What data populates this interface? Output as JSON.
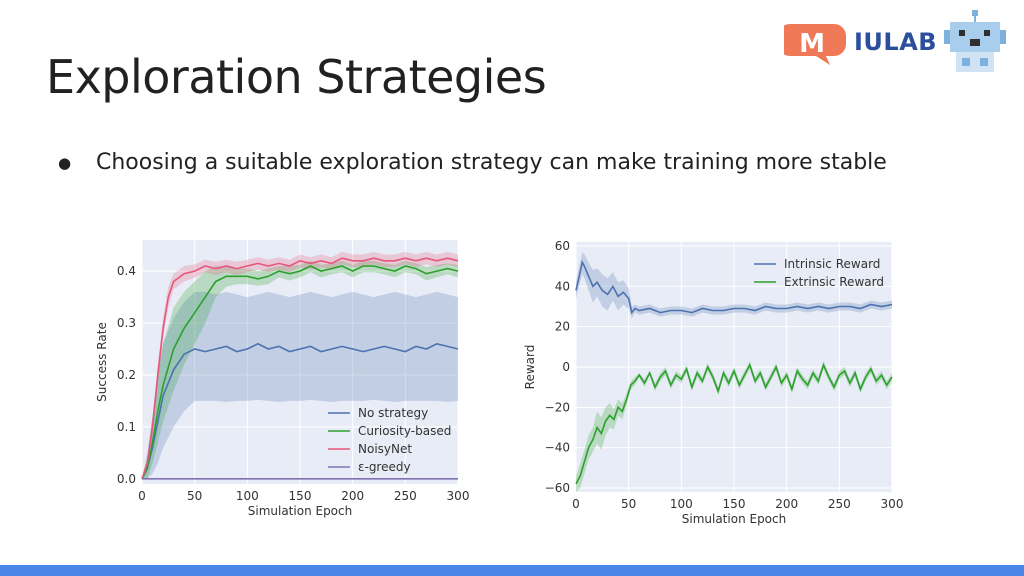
{
  "slide": {
    "title": "Exploration Strategies",
    "bullet": "Choosing a suitable exploration strategy can make training more stable"
  },
  "logo": {
    "letter": "M",
    "text": "IULAB"
  },
  "colors": {
    "bottom_bar": "#4a86e8",
    "plot_bg": "#e8ecf6",
    "grid": "#ffffff"
  },
  "chart_data": [
    {
      "type": "line",
      "xlabel": "Simulation Epoch",
      "ylabel": "Success Rate",
      "xlim": [
        0,
        300
      ],
      "ylim": [
        -0.01,
        0.46
      ],
      "xticks": [
        0,
        50,
        100,
        150,
        200,
        250,
        300
      ],
      "yticks": [
        0.0,
        0.1,
        0.2,
        0.3,
        0.4
      ],
      "ytick_labels": [
        "0.0",
        "0.1",
        "0.2",
        "0.3",
        "0.4"
      ],
      "grid": true,
      "legend_position": "lower-right",
      "series": [
        {
          "name": "No strategy",
          "color": "#4c72b0",
          "x": [
            0,
            5,
            10,
            15,
            20,
            30,
            40,
            50,
            60,
            70,
            80,
            90,
            100,
            110,
            120,
            130,
            140,
            150,
            160,
            170,
            180,
            190,
            200,
            210,
            220,
            230,
            240,
            250,
            260,
            270,
            280,
            290,
            300
          ],
          "y": [
            0.0,
            0.02,
            0.06,
            0.11,
            0.16,
            0.21,
            0.24,
            0.25,
            0.245,
            0.25,
            0.255,
            0.245,
            0.25,
            0.26,
            0.25,
            0.255,
            0.245,
            0.25,
            0.255,
            0.245,
            0.25,
            0.255,
            0.25,
            0.245,
            0.25,
            0.255,
            0.25,
            0.245,
            0.255,
            0.25,
            0.26,
            0.255,
            0.25
          ],
          "band_upper": [
            0.0,
            0.05,
            0.12,
            0.2,
            0.26,
            0.31,
            0.34,
            0.36,
            0.36,
            0.355,
            0.36,
            0.355,
            0.35,
            0.355,
            0.36,
            0.355,
            0.35,
            0.355,
            0.36,
            0.355,
            0.35,
            0.355,
            0.36,
            0.355,
            0.35,
            0.355,
            0.36,
            0.355,
            0.35,
            0.355,
            0.36,
            0.355,
            0.35
          ],
          "band_lower": [
            0.0,
            0.0,
            0.01,
            0.03,
            0.06,
            0.1,
            0.13,
            0.15,
            0.15,
            0.15,
            0.148,
            0.15,
            0.15,
            0.152,
            0.15,
            0.148,
            0.15,
            0.15,
            0.152,
            0.15,
            0.148,
            0.15,
            0.15,
            0.15,
            0.152,
            0.15,
            0.148,
            0.15,
            0.15,
            0.15,
            0.15,
            0.148,
            0.15
          ]
        },
        {
          "name": "Curiosity-based",
          "color": "#2ca02c",
          "x": [
            0,
            5,
            10,
            15,
            20,
            30,
            40,
            50,
            60,
            70,
            80,
            90,
            100,
            110,
            120,
            130,
            140,
            150,
            160,
            170,
            180,
            190,
            200,
            210,
            220,
            230,
            240,
            250,
            260,
            270,
            280,
            290,
            300
          ],
          "y": [
            0.0,
            0.02,
            0.07,
            0.13,
            0.18,
            0.25,
            0.29,
            0.32,
            0.35,
            0.38,
            0.39,
            0.39,
            0.39,
            0.385,
            0.39,
            0.4,
            0.395,
            0.4,
            0.41,
            0.4,
            0.405,
            0.41,
            0.4,
            0.41,
            0.41,
            0.405,
            0.4,
            0.41,
            0.405,
            0.395,
            0.4,
            0.405,
            0.4
          ],
          "band_upper": [
            0.0,
            0.04,
            0.12,
            0.2,
            0.26,
            0.33,
            0.36,
            0.38,
            0.4,
            0.41,
            0.41,
            0.405,
            0.405,
            0.4,
            0.405,
            0.41,
            0.41,
            0.412,
            0.42,
            0.412,
            0.415,
            0.42,
            0.412,
            0.42,
            0.42,
            0.415,
            0.412,
            0.42,
            0.415,
            0.408,
            0.412,
            0.415,
            0.412
          ],
          "band_lower": [
            0.0,
            0.0,
            0.03,
            0.07,
            0.11,
            0.17,
            0.22,
            0.26,
            0.3,
            0.35,
            0.37,
            0.375,
            0.375,
            0.372,
            0.375,
            0.388,
            0.382,
            0.388,
            0.398,
            0.388,
            0.394,
            0.398,
            0.388,
            0.398,
            0.398,
            0.394,
            0.388,
            0.398,
            0.394,
            0.382,
            0.388,
            0.394,
            0.388
          ]
        },
        {
          "name": "NoisyNet",
          "color": "#e8567c",
          "x": [
            0,
            5,
            10,
            15,
            20,
            25,
            30,
            40,
            50,
            60,
            70,
            80,
            90,
            100,
            110,
            120,
            130,
            140,
            150,
            160,
            170,
            180,
            190,
            200,
            210,
            220,
            230,
            240,
            250,
            260,
            270,
            280,
            290,
            300
          ],
          "y": [
            0.0,
            0.03,
            0.1,
            0.2,
            0.29,
            0.35,
            0.38,
            0.395,
            0.4,
            0.41,
            0.405,
            0.41,
            0.405,
            0.41,
            0.415,
            0.41,
            0.415,
            0.41,
            0.42,
            0.415,
            0.42,
            0.415,
            0.425,
            0.42,
            0.42,
            0.425,
            0.42,
            0.42,
            0.425,
            0.42,
            0.425,
            0.42,
            0.425,
            0.42
          ],
          "band_upper": [
            0.0,
            0.04,
            0.12,
            0.22,
            0.31,
            0.37,
            0.395,
            0.41,
            0.413,
            0.422,
            0.418,
            0.422,
            0.418,
            0.422,
            0.427,
            0.422,
            0.427,
            0.422,
            0.432,
            0.427,
            0.432,
            0.427,
            0.437,
            0.432,
            0.432,
            0.437,
            0.432,
            0.432,
            0.437,
            0.432,
            0.437,
            0.432,
            0.437,
            0.432
          ],
          "band_lower": [
            0.0,
            0.02,
            0.08,
            0.18,
            0.27,
            0.33,
            0.365,
            0.38,
            0.387,
            0.398,
            0.392,
            0.398,
            0.392,
            0.398,
            0.403,
            0.398,
            0.403,
            0.398,
            0.408,
            0.403,
            0.408,
            0.403,
            0.413,
            0.408,
            0.408,
            0.413,
            0.408,
            0.408,
            0.413,
            0.408,
            0.413,
            0.408,
            0.413,
            0.408
          ]
        },
        {
          "name": "ε-greedy",
          "color": "#8172b2",
          "x": [
            0,
            300
          ],
          "y": [
            0.0,
            0.0
          ]
        }
      ]
    },
    {
      "type": "line",
      "xlabel": "Simulation Epoch",
      "ylabel": "Reward",
      "xlim": [
        0,
        300
      ],
      "ylim": [
        -62,
        62
      ],
      "xticks": [
        0,
        50,
        100,
        150,
        200,
        250,
        300
      ],
      "yticks": [
        -60,
        -40,
        -20,
        0,
        20,
        40,
        60
      ],
      "ytick_labels": [
        "−60",
        "−40",
        "−20",
        "0",
        "20",
        "40",
        "60"
      ],
      "grid": true,
      "legend_position": "upper-right",
      "series": [
        {
          "name": "Intrinsic Reward",
          "color": "#4c72b0",
          "x": [
            0,
            3,
            6,
            8,
            12,
            16,
            20,
            25,
            30,
            35,
            40,
            45,
            50,
            53,
            56,
            60,
            70,
            80,
            90,
            100,
            110,
            120,
            130,
            140,
            150,
            160,
            170,
            180,
            190,
            200,
            210,
            220,
            230,
            240,
            250,
            260,
            270,
            280,
            290,
            300
          ],
          "y": [
            38,
            45,
            52,
            50,
            45,
            40,
            42,
            38,
            36,
            40,
            35,
            37,
            34,
            27,
            29,
            28,
            29,
            27,
            28,
            28,
            27,
            29,
            28,
            28,
            29,
            29,
            28,
            30,
            29,
            29,
            30,
            29,
            30,
            29,
            30,
            30,
            29,
            31,
            30,
            31
          ],
          "band_upper": [
            42,
            50,
            57,
            56,
            52,
            48,
            49,
            46,
            44,
            47,
            42,
            43,
            39,
            30,
            31,
            30,
            31,
            29,
            30,
            30,
            29,
            31,
            30,
            30,
            31,
            31,
            30,
            32,
            31,
            31,
            32,
            31,
            32,
            31,
            32,
            32,
            31,
            33,
            32,
            33
          ],
          "band_lower": [
            34,
            40,
            46,
            44,
            38,
            32,
            35,
            30,
            28,
            33,
            28,
            31,
            29,
            24,
            27,
            26,
            27,
            25,
            26,
            26,
            25,
            27,
            26,
            26,
            27,
            27,
            26,
            28,
            27,
            27,
            28,
            27,
            28,
            27,
            28,
            28,
            27,
            29,
            28,
            29
          ]
        },
        {
          "name": "Extrinsic Reward",
          "color": "#2ca02c",
          "x": [
            0,
            4,
            8,
            12,
            16,
            20,
            24,
            28,
            32,
            36,
            40,
            44,
            48,
            52,
            56,
            60,
            65,
            70,
            75,
            80,
            85,
            90,
            95,
            100,
            105,
            110,
            115,
            120,
            125,
            130,
            135,
            140,
            145,
            150,
            155,
            160,
            165,
            170,
            175,
            180,
            185,
            190,
            195,
            200,
            205,
            210,
            215,
            220,
            225,
            230,
            235,
            240,
            245,
            250,
            255,
            260,
            265,
            270,
            275,
            280,
            285,
            290,
            295,
            300
          ],
          "y": [
            -58,
            -54,
            -47,
            -40,
            -36,
            -30,
            -33,
            -27,
            -24,
            -26,
            -20,
            -22,
            -16,
            -9,
            -7,
            -4,
            -8,
            -3,
            -10,
            -5,
            -2,
            -9,
            -4,
            -6,
            -1,
            -10,
            -3,
            -7,
            0,
            -5,
            -12,
            -3,
            -8,
            -2,
            -9,
            -4,
            1,
            -7,
            -3,
            -10,
            -5,
            0,
            -8,
            -4,
            -11,
            -2,
            -6,
            -9,
            -3,
            -7,
            1,
            -5,
            -10,
            -4,
            -2,
            -8,
            -3,
            -11,
            -5,
            -1,
            -7,
            -4,
            -9,
            -5
          ],
          "band_upper": [
            -54,
            -48,
            -41,
            -34,
            -30,
            -22,
            -25,
            -20,
            -18,
            -21,
            -16,
            -18,
            -13,
            -7,
            -5,
            -3,
            -6,
            -2,
            -8,
            -3,
            0,
            -7,
            -2,
            -4,
            1,
            -8,
            -1,
            -5,
            2,
            -3,
            -10,
            -1,
            -6,
            0,
            -7,
            -2,
            3,
            -5,
            -1,
            -8,
            -3,
            2,
            -6,
            -2,
            -9,
            0,
            -4,
            -7,
            -1,
            -5,
            3,
            -3,
            -8,
            -2,
            0,
            -6,
            -1,
            -9,
            -3,
            1,
            -5,
            -2,
            -7,
            -3
          ],
          "band_lower": [
            -62,
            -60,
            -53,
            -46,
            -42,
            -38,
            -41,
            -34,
            -30,
            -31,
            -24,
            -26,
            -19,
            -11,
            -9,
            -5,
            -10,
            -4,
            -12,
            -7,
            -4,
            -11,
            -6,
            -8,
            -3,
            -12,
            -5,
            -9,
            -2,
            -7,
            -14,
            -5,
            -10,
            -4,
            -11,
            -6,
            -1,
            -9,
            -5,
            -12,
            -7,
            -2,
            -10,
            -6,
            -13,
            -4,
            -8,
            -11,
            -5,
            -9,
            -1,
            -7,
            -12,
            -6,
            -4,
            -10,
            -5,
            -13,
            -7,
            -3,
            -9,
            -6,
            -11,
            -7
          ]
        }
      ]
    }
  ]
}
